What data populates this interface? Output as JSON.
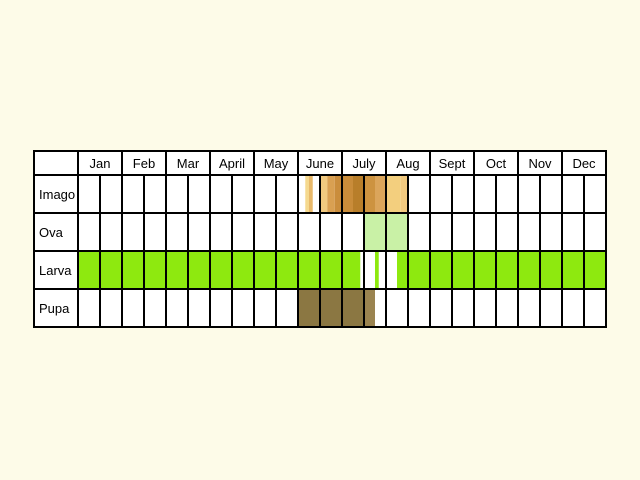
{
  "months": [
    "Jan",
    "Feb",
    "Mar",
    "April",
    "May",
    "June",
    "July",
    "Aug",
    "Sept",
    "Oct",
    "Nov",
    "Dec"
  ],
  "rows": [
    {
      "label": "Imago",
      "segments": [
        {
          "start": 10.33,
          "end": 10.5,
          "color": "#f5d98f"
        },
        {
          "start": 10.5,
          "end": 10.67,
          "color": "#e9b96a"
        },
        {
          "start": 11.0,
          "end": 11.33,
          "color": "#f1c97f"
        },
        {
          "start": 11.33,
          "end": 11.67,
          "color": "#d9a052"
        },
        {
          "start": 11.67,
          "end": 12.0,
          "color": "#ca8d3c"
        },
        {
          "start": 12.0,
          "end": 12.5,
          "color": "#c98c3a"
        },
        {
          "start": 12.5,
          "end": 13.0,
          "color": "#b87e2a"
        },
        {
          "start": 13.0,
          "end": 13.5,
          "color": "#cd9340"
        },
        {
          "start": 13.5,
          "end": 14.0,
          "color": "#dba55b"
        },
        {
          "start": 14.0,
          "end": 14.67,
          "color": "#f3cf7e"
        },
        {
          "start": 14.67,
          "end": 15.0,
          "color": "#f1c97f"
        }
      ]
    },
    {
      "label": "Ova",
      "segments": [
        {
          "start": 13.0,
          "end": 15.0,
          "color": "#c9f1a6"
        }
      ]
    },
    {
      "label": "Larva",
      "segments": [
        {
          "start": 0.0,
          "end": 12.83,
          "color": "#8ee90f"
        },
        {
          "start": 13.5,
          "end": 13.67,
          "color": "#8ee90f"
        },
        {
          "start": 14.5,
          "end": 24.0,
          "color": "#8ee90f"
        }
      ]
    },
    {
      "label": "Pupa",
      "segments": [
        {
          "start": 10.0,
          "end": 13.0,
          "color": "#8b7742"
        },
        {
          "start": 13.0,
          "end": 13.5,
          "color": "#9b8450"
        }
      ]
    }
  ]
}
